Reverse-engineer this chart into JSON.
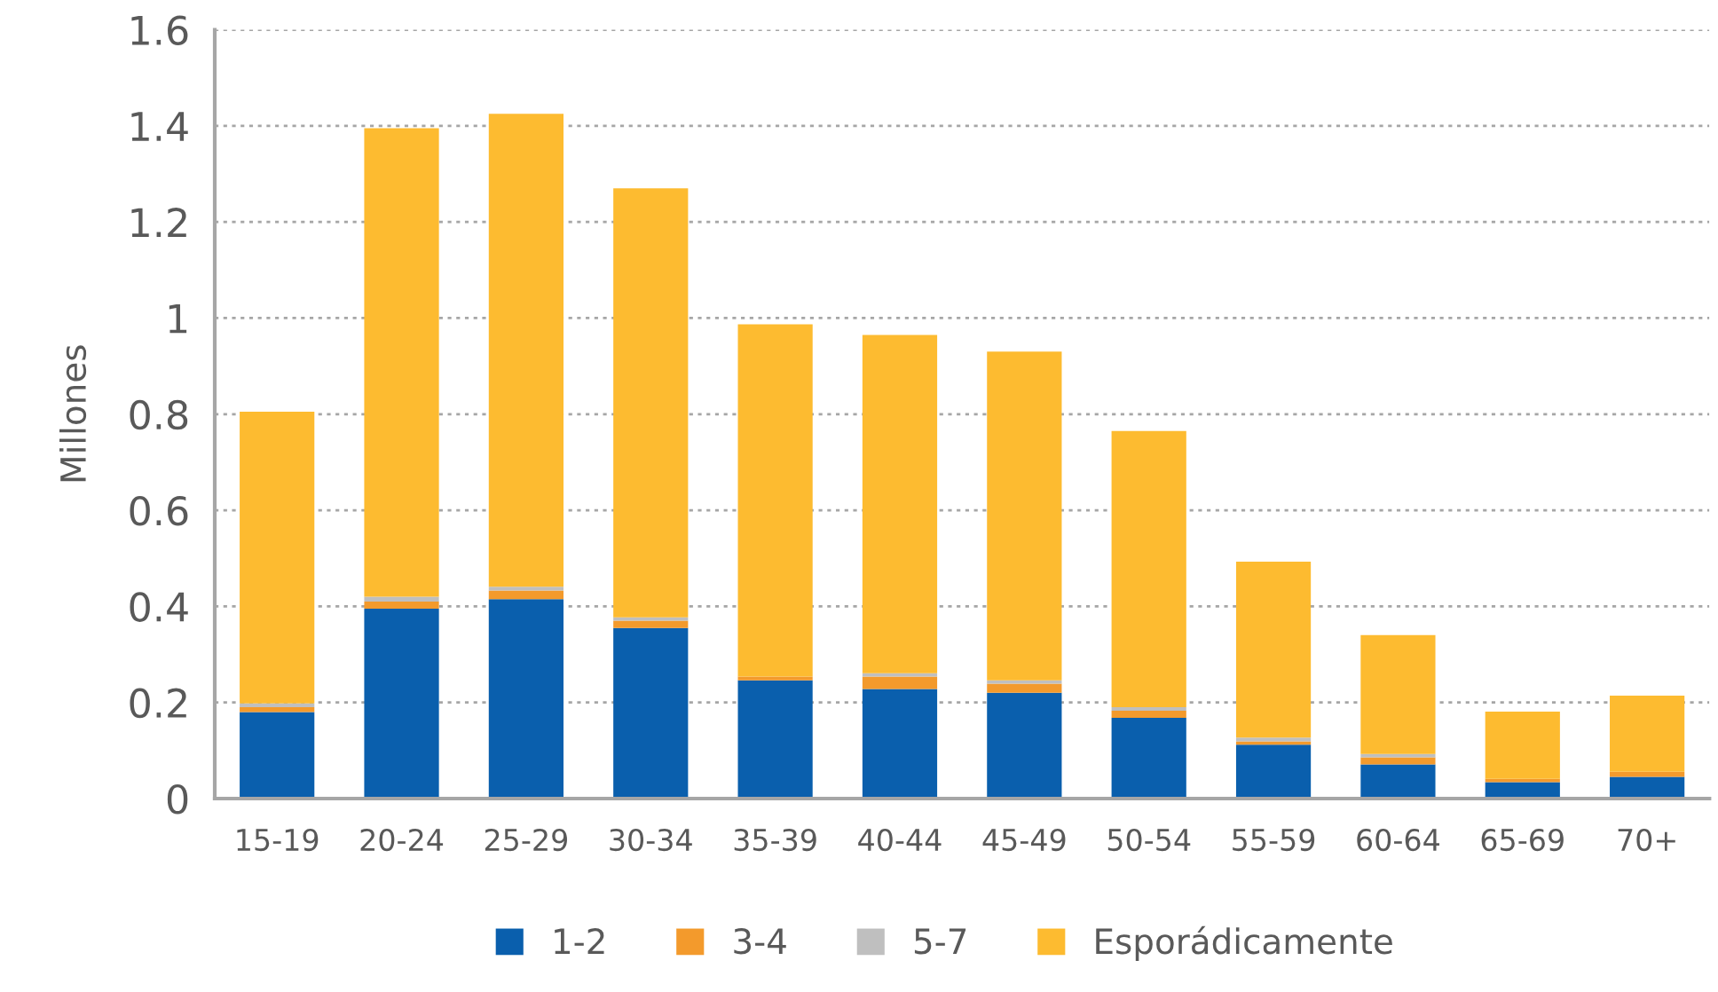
{
  "chart_data": {
    "type": "bar",
    "stacked": true,
    "ylabel": "Millones",
    "categories": [
      "15-19",
      "20-24",
      "25-29",
      "30-34",
      "35-39",
      "40-44",
      "45-49",
      "50-54",
      "55-59",
      "60-64",
      "65-69",
      "70+"
    ],
    "series": [
      {
        "name": "1-2",
        "color": "#0a5fad",
        "values": [
          0.18,
          0.395,
          0.415,
          0.355,
          0.246,
          0.228,
          0.22,
          0.168,
          0.112,
          0.071,
          0.034,
          0.045
        ]
      },
      {
        "name": "3-4",
        "color": "#f39a2c",
        "values": [
          0.01,
          0.015,
          0.018,
          0.015,
          0.008,
          0.026,
          0.019,
          0.015,
          0.007,
          0.015,
          0.007,
          0.011
        ]
      },
      {
        "name": "5-7",
        "color": "#bfbfbf",
        "values": [
          0.008,
          0.01,
          0.008,
          0.007,
          null,
          0.007,
          0.007,
          0.007,
          0.008,
          0.007,
          null,
          null
        ]
      },
      {
        "name": "Esporádicamente",
        "color": "#fdbb30",
        "values": [
          0.607,
          0.975,
          0.984,
          0.893,
          0.733,
          0.704,
          0.684,
          0.575,
          0.366,
          0.247,
          0.14,
          0.158
        ]
      }
    ],
    "ylim": [
      0,
      1.6
    ],
    "yticks": [
      0,
      0.2,
      0.4,
      0.6,
      0.8,
      1,
      1.2,
      1.4,
      1.6
    ],
    "grid": "y",
    "legend": "bottom"
  }
}
